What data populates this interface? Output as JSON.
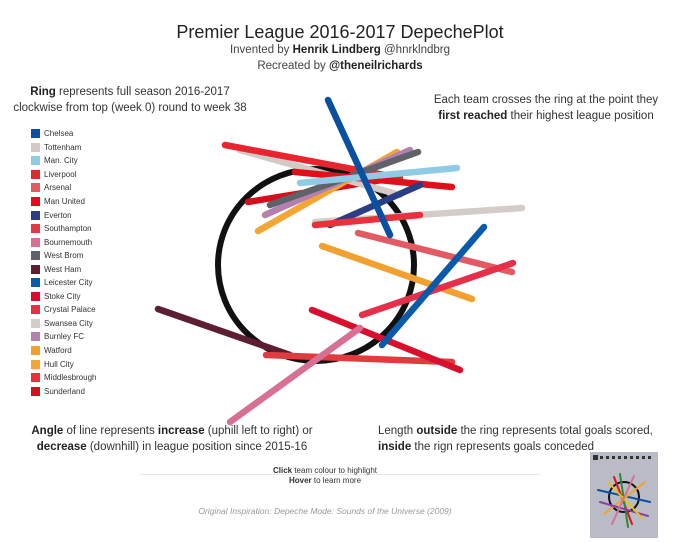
{
  "header": {
    "title": "Premier League 2016-2017 DepechePlot",
    "invented_prefix": "Invented by ",
    "invented_name": "Henrik Lindberg",
    "invented_handle": " @hnrklndbrg",
    "recreated_prefix": "Recreated by ",
    "recreated_handle": "@theneilrichards"
  },
  "notes": {
    "ring_bold": "Ring",
    "ring_text_1": " represents full season 2016-2017",
    "ring_text_2": "clockwise from top (week 0) round to week 38",
    "cross_text_1": "Each team crosses the ring at the point they",
    "cross_bold": "first reached",
    "cross_text_2": " their highest league position",
    "angle_bold_1": "Angle",
    "angle_text_1": " of line represents ",
    "angle_bold_2": "increase",
    "angle_text_2": " (uphill left to right) or",
    "angle_bold_3": "decrease",
    "angle_text_3": " (downhill) in league position since 2015-16",
    "length_text_1": "Length ",
    "length_bold_1": "outside",
    "length_text_2": " the ring represents total goals scored,",
    "length_bold_2": "inside",
    "length_text_3": " the rign represents goals conceded"
  },
  "footer": {
    "click_bold": "Click",
    "click_text": " team colour to highlight",
    "hover_bold": "Hover",
    "hover_text": " to learn more",
    "inspiration": "Original Inspiration: Depeche Mode: Sounds of the Universe (2009)"
  },
  "chart_data": {
    "type": "line",
    "title": "Premier League 2016-2017 DepechePlot",
    "ring": {
      "weeks": 38,
      "start": "top",
      "direction": "clockwise",
      "color": "#111111"
    },
    "series": [
      {
        "name": "Chelsea",
        "color": "#0a50a1"
      },
      {
        "name": "Tottenham",
        "color": "#d3c9c5"
      },
      {
        "name": "Man. City",
        "color": "#8fcbe4"
      },
      {
        "name": "Liverpool",
        "color": "#e8252f"
      },
      {
        "name": "Arsenal",
        "color": "#e35a63"
      },
      {
        "name": "Man United",
        "color": "#e0101a"
      },
      {
        "name": "Everton",
        "color": "#2a3e85"
      },
      {
        "name": "Southampton",
        "color": "#e03b3f"
      },
      {
        "name": "Bournemouth",
        "color": "#d87094"
      },
      {
        "name": "West Brom",
        "color": "#5e6369"
      },
      {
        "name": "West Ham",
        "color": "#5d1d33"
      },
      {
        "name": "Leicester City",
        "color": "#0a5aab"
      },
      {
        "name": "Stoke City",
        "color": "#d8102e"
      },
      {
        "name": "Crystal Palace",
        "color": "#e6304a"
      },
      {
        "name": "Swansea City",
        "color": "#d3ccc8"
      },
      {
        "name": "Burnley FC",
        "color": "#b380b0"
      },
      {
        "name": "Watford",
        "color": "#f2a130"
      },
      {
        "name": "Hull City",
        "color": "#f4a635"
      },
      {
        "name": "Middlesbrough",
        "color": "#e8313a"
      },
      {
        "name": "Sunderland",
        "color": "#d50f1e"
      }
    ]
  }
}
